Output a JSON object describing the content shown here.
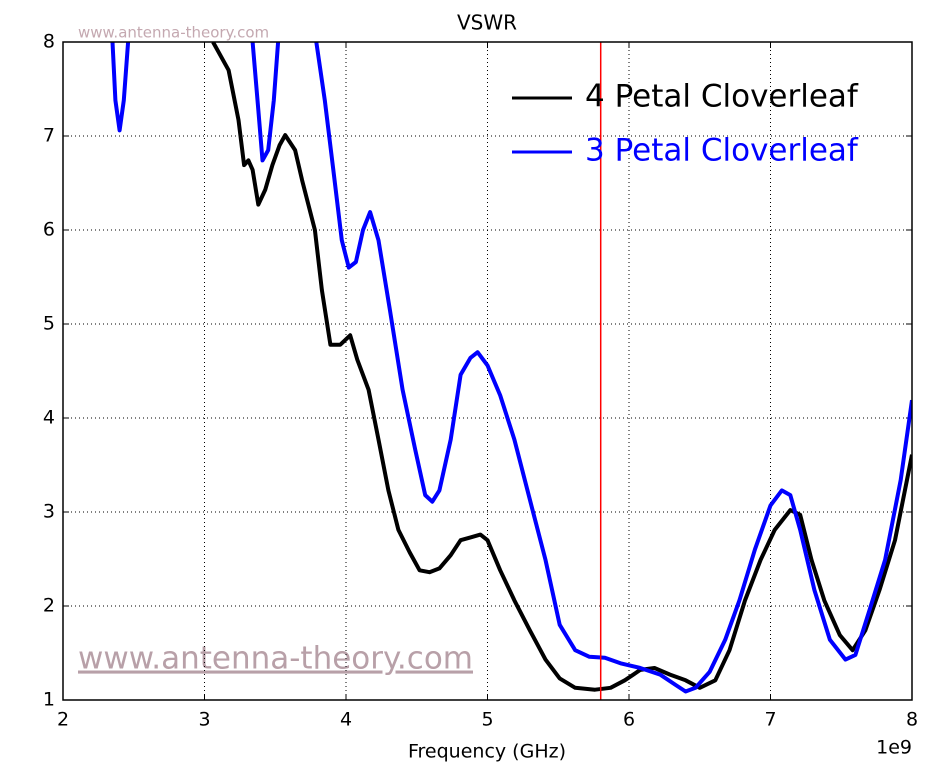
{
  "chart_data": {
    "type": "line",
    "title": "VSWR",
    "xlabel": "Frequency (GHz)",
    "x_offset_label": "1e9",
    "watermark": "www.antenna-theory.com",
    "xlim": [
      2,
      8
    ],
    "xticks": [
      2,
      3,
      4,
      5,
      6,
      7,
      8
    ],
    "ylim": [
      1,
      8
    ],
    "yticks": [
      1,
      2,
      3,
      4,
      5,
      6,
      7,
      8
    ],
    "grid": true,
    "legend": "upper right",
    "marker_line": {
      "x": 5.8,
      "color": "#ff0000"
    },
    "series": [
      {
        "name": "4 Petal Cloverleaf",
        "color": "#000000",
        "x": [
          3.06,
          3.17,
          3.24,
          3.28,
          3.31,
          3.34,
          3.38,
          3.43,
          3.48,
          3.53,
          3.57,
          3.64,
          3.69,
          3.78,
          3.83,
          3.89,
          3.96,
          4.03,
          4.08,
          4.16,
          4.23,
          4.3,
          4.37,
          4.45,
          4.52,
          4.59,
          4.66,
          4.74,
          4.81,
          4.88,
          4.95,
          5.0,
          5.09,
          5.19,
          5.3,
          5.41,
          5.51,
          5.62,
          5.76,
          5.87,
          5.97,
          6.08,
          6.18,
          6.29,
          6.4,
          6.5,
          6.61,
          6.71,
          6.82,
          6.93,
          7.03,
          7.14,
          7.21,
          7.29,
          7.38,
          7.49,
          7.58,
          7.67,
          7.77,
          7.88,
          8.0
        ],
        "values": [
          8,
          7.7,
          7.17,
          6.69,
          6.74,
          6.64,
          6.27,
          6.43,
          6.69,
          6.9,
          7.01,
          6.85,
          6.53,
          6.0,
          5.36,
          4.78,
          4.78,
          4.88,
          4.62,
          4.3,
          3.77,
          3.23,
          2.81,
          2.57,
          2.38,
          2.36,
          2.4,
          2.54,
          2.7,
          2.73,
          2.76,
          2.7,
          2.38,
          2.06,
          1.74,
          1.43,
          1.23,
          1.13,
          1.11,
          1.13,
          1.21,
          1.32,
          1.34,
          1.27,
          1.21,
          1.13,
          1.21,
          1.53,
          2.06,
          2.49,
          2.81,
          3.02,
          2.97,
          2.49,
          2.06,
          1.69,
          1.53,
          1.74,
          2.17,
          2.7,
          3.61
        ]
      },
      {
        "name": "3 Petal Cloverleaf",
        "color": "#0000ff",
        "x": [
          2.35,
          2.37,
          2.4,
          2.43,
          2.46,
          2.46,
          3.34,
          3.38,
          3.41,
          3.45,
          3.49,
          3.52,
          3.52,
          3.79,
          3.85,
          3.91,
          3.97,
          4.02,
          4.07,
          4.12,
          4.17,
          4.23,
          4.31,
          4.4,
          4.49,
          4.56,
          4.61,
          4.66,
          4.74,
          4.81,
          4.88,
          4.93,
          5.0,
          5.09,
          5.19,
          5.3,
          5.41,
          5.51,
          5.62,
          5.72,
          5.83,
          5.94,
          6.08,
          6.22,
          6.33,
          6.4,
          6.47,
          6.57,
          6.68,
          6.78,
          6.89,
          7.0,
          7.08,
          7.14,
          7.21,
          7.31,
          7.42,
          7.53,
          7.6,
          7.7,
          7.81,
          7.92,
          8.0
        ],
        "values": [
          8,
          7.38,
          7.06,
          7.38,
          8,
          null,
          8,
          7.28,
          6.74,
          6.85,
          7.38,
          8,
          null,
          8,
          7.38,
          6.64,
          5.89,
          5.6,
          5.66,
          6.0,
          6.19,
          5.89,
          5.15,
          4.3,
          3.66,
          3.18,
          3.11,
          3.23,
          3.77,
          4.46,
          4.64,
          4.7,
          4.56,
          4.24,
          3.77,
          3.13,
          2.49,
          1.8,
          1.53,
          1.46,
          1.45,
          1.39,
          1.34,
          1.27,
          1.16,
          1.09,
          1.13,
          1.3,
          1.64,
          2.06,
          2.6,
          3.07,
          3.23,
          3.18,
          2.81,
          2.17,
          1.64,
          1.43,
          1.48,
          1.96,
          2.49,
          3.34,
          4.19
        ]
      }
    ]
  }
}
